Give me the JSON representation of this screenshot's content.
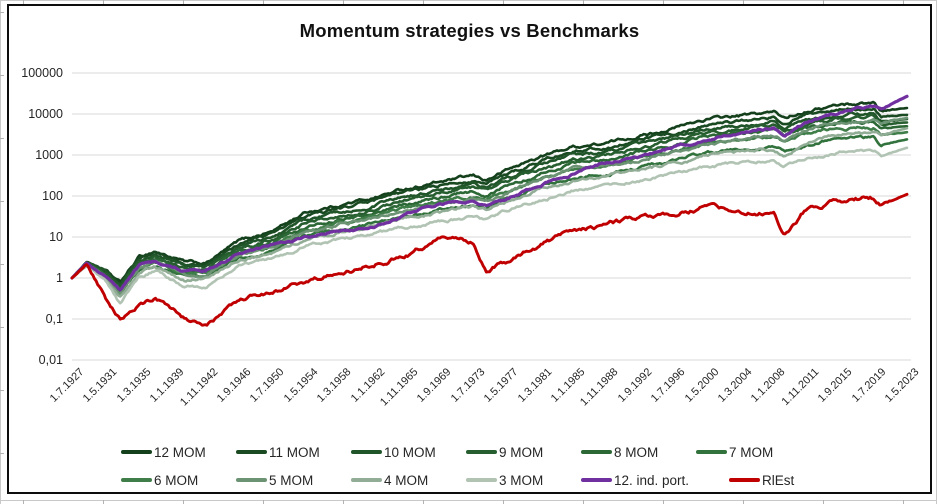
{
  "chart": {
    "title": "Momentum strategies vs Benchmarks",
    "y_axis": {
      "labels": [
        "100000",
        "10000",
        "1000",
        "100",
        "10",
        "1",
        "0,1",
        "0,01"
      ],
      "values": [
        100000,
        10000,
        1000,
        100,
        10,
        1,
        0.1,
        0.01
      ]
    },
    "x_axis": {
      "labels": [
        "1.7.1927",
        "1.5.1931",
        "1.3.1935",
        "1.1.1939",
        "1.11.1942",
        "1.9.1946",
        "1.7.1950",
        "1.5.1954",
        "1.3.1958",
        "1.1.1962",
        "1.11.1965",
        "1.9.1969",
        "1.7.1973",
        "1.5.1977",
        "1.3.1981",
        "1.1.1985",
        "1.11.1988",
        "1.9.1992",
        "1.7.1996",
        "1.5.2000",
        "1.3.2004",
        "1.1.2008",
        "1.11.2011",
        "1.9.2015",
        "1.7.2019",
        "1.5.2023"
      ]
    },
    "legend": {
      "rows": [
        [
          "12 MOM",
          "11 MOM",
          "10 MOM",
          "9 MOM",
          "8 MOM",
          "7 MOM"
        ],
        [
          "6 MOM",
          "5 MOM",
          "4 MOM",
          "3 MOM",
          "12. ind. port.",
          "RlEst"
        ]
      ]
    },
    "colors": {
      "gridline": "#d9d9d9",
      "axis_text": "#262626",
      "border": "#0d0d0d"
    }
  },
  "chart_data": {
    "type": "line",
    "title": "Momentum strategies vs Benchmarks",
    "y_scale": "log",
    "ylim": [
      0.01,
      100000
    ],
    "grid": "horizontal",
    "legend_position": "bottom",
    "x_unit": "year (monthly series, 1.7.1927 - 1.5.2023)",
    "x": [
      1927.5,
      1929.2,
      1931.3,
      1933.0,
      1935.2,
      1937.0,
      1939.0,
      1940.5,
      1942.8,
      1946.7,
      1950.5,
      1954.3,
      1958.2,
      1962.0,
      1965.8,
      1969.7,
      1973.5,
      1975.0,
      1977.3,
      1981.2,
      1985.0,
      1988.8,
      1992.7,
      1996.5,
      2000.3,
      2004.2,
      2008.0,
      2009.2,
      2011.8,
      2015.7,
      2019.5,
      2020.3,
      2023.3
    ],
    "series": [
      {
        "name": "12 MOM",
        "color": "#14401c",
        "width": 2.6,
        "values": [
          1,
          2.5,
          1.5,
          0.75,
          3.2,
          4.5,
          3.2,
          2.4,
          2.2,
          8,
          14,
          40,
          60,
          90,
          150,
          220,
          300,
          240,
          420,
          900,
          1600,
          1900,
          3000,
          4500,
          7500,
          9000,
          11000,
          8000,
          12500,
          17000,
          19000,
          12000,
          14000
        ]
      },
      {
        "name": "11 MOM",
        "color": "#1a4a22",
        "width": 2.6,
        "values": [
          1,
          2.4,
          1.4,
          0.7,
          2.9,
          4.0,
          2.85,
          2.1,
          2.0,
          7,
          12,
          32,
          48,
          72,
          120,
          175,
          240,
          195,
          330,
          700,
          1250,
          1500,
          2300,
          3400,
          5500,
          6700,
          8200,
          6000,
          9200,
          12500,
          13500,
          8500,
          9500
        ]
      },
      {
        "name": "10 MOM",
        "color": "#205429",
        "width": 2.6,
        "values": [
          1,
          2.35,
          1.35,
          0.65,
          2.6,
          3.6,
          2.55,
          1.9,
          1.8,
          6,
          10,
          26,
          39,
          58,
          95,
          140,
          190,
          155,
          260,
          550,
          980,
          1180,
          1800,
          2700,
          4300,
          5200,
          6400,
          4700,
          7200,
          9800,
          10500,
          6800,
          7500
        ]
      },
      {
        "name": "9 MOM",
        "color": "#265e30",
        "width": 2.6,
        "values": [
          1,
          2.3,
          1.3,
          0.6,
          2.35,
          3.2,
          2.3,
          1.7,
          1.6,
          5.2,
          8.7,
          22,
          33,
          48,
          80,
          115,
          160,
          130,
          215,
          450,
          800,
          960,
          1480,
          2200,
          3500,
          4300,
          5200,
          3800,
          5900,
          8000,
          8600,
          5500,
          6200
        ]
      },
      {
        "name": "8 MOM",
        "color": "#2c6836",
        "width": 2.6,
        "values": [
          1,
          2.25,
          1.25,
          0.55,
          2.1,
          2.85,
          2.0,
          1.5,
          1.45,
          4.5,
          7.4,
          18,
          27,
          39,
          64,
          93,
          128,
          104,
          172,
          360,
          640,
          770,
          1180,
          1750,
          2800,
          3400,
          4100,
          3000,
          4700,
          6300,
          6800,
          4400,
          5000
        ]
      },
      {
        "name": "7 MOM",
        "color": "#32723d",
        "width": 2.6,
        "values": [
          1,
          2.1,
          1.1,
          0.45,
          1.6,
          2.2,
          1.5,
          1.15,
          1.1,
          3.0,
          4.7,
          10.5,
          15,
          21,
          33,
          47,
          62,
          50,
          82,
          165,
          285,
          340,
          510,
          740,
          1150,
          1380,
          1650,
          1200,
          1850,
          2450,
          2650,
          1750,
          2400
        ]
      },
      {
        "name": "6 MOM",
        "color": "#3f7d49",
        "width": 2.6,
        "values": [
          1,
          2.2,
          1.2,
          0.5,
          1.85,
          2.5,
          1.75,
          1.3,
          1.3,
          3.8,
          6.2,
          14.5,
          21.5,
          30.5,
          49,
          70,
          95,
          77,
          127,
          260,
          455,
          545,
          830,
          1230,
          1950,
          2350,
          2850,
          2100,
          3250,
          4350,
          4700,
          3000,
          3600
        ]
      },
      {
        "name": "5 MOM",
        "color": "#6c9373",
        "width": 2.6,
        "values": [
          1,
          2.15,
          1.1,
          0.42,
          1.7,
          2.35,
          1.6,
          1.2,
          1.2,
          3.5,
          5.8,
          13.5,
          20,
          28.5,
          46,
          66,
          89,
          72,
          119,
          245,
          430,
          520,
          790,
          1180,
          1900,
          2350,
          2900,
          2150,
          4200,
          6400,
          7400,
          5800,
          8000
        ]
      },
      {
        "name": "4 MOM",
        "color": "#92ad96",
        "width": 2.6,
        "values": [
          1,
          2.1,
          1.0,
          0.35,
          1.4,
          2.0,
          1.3,
          0.95,
          0.95,
          2.7,
          4.2,
          9.2,
          13.3,
          18.5,
          29,
          41,
          54,
          44,
          71,
          142,
          243,
          290,
          435,
          630,
          980,
          1170,
          1400,
          1050,
          2100,
          3400,
          4100,
          3200,
          4500
        ]
      },
      {
        "name": "3 MOM",
        "color": "#b1c3b3",
        "width": 2.6,
        "values": [
          1,
          2.0,
          0.85,
          0.24,
          1.0,
          1.5,
          0.9,
          0.65,
          0.62,
          1.9,
          2.9,
          6.1,
          8.6,
          11.7,
          18,
          25,
          32,
          26,
          42,
          82,
          138,
          163,
          240,
          345,
          530,
          625,
          740,
          560,
          820,
          1150,
          1350,
          950,
          1500
        ]
      },
      {
        "name": "12. ind. port.",
        "color": "#7030a0",
        "width": 3.2,
        "values": [
          1,
          2.3,
          1.0,
          0.5,
          2.0,
          2.6,
          1.9,
          1.5,
          1.55,
          4.0,
          6.5,
          10,
          14,
          16,
          35,
          65,
          70,
          58,
          85,
          190,
          350,
          650,
          900,
          1500,
          2300,
          3500,
          4500,
          2700,
          6300,
          11000,
          16000,
          13000,
          27000
        ]
      },
      {
        "name": "RlEst",
        "color": "#c00000",
        "width": 2.9,
        "values": [
          1,
          2.2,
          0.35,
          0.09,
          0.22,
          0.35,
          0.15,
          0.1,
          0.07,
          0.28,
          0.45,
          0.85,
          1.3,
          2.2,
          3.5,
          9,
          8,
          1.6,
          2.5,
          6.5,
          13,
          20,
          30,
          38,
          54,
          45,
          35,
          11,
          50,
          75,
          90,
          60,
          110
        ]
      }
    ]
  }
}
